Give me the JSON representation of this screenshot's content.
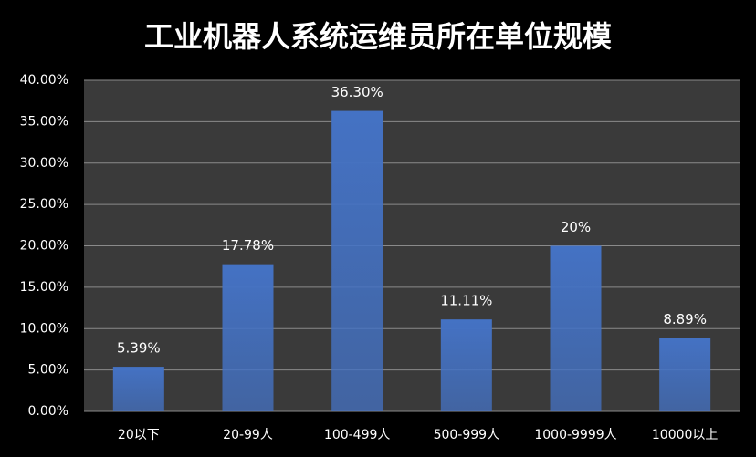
{
  "chart_data": {
    "type": "bar",
    "title": "工业机器人系统运维员所在单位规模",
    "categories": [
      "20以下",
      "20-99人",
      "100-499人",
      "500-999人",
      "1000-9999人",
      "10000以上"
    ],
    "values": [
      5.39,
      17.78,
      36.3,
      11.11,
      20,
      8.89
    ],
    "value_labels": [
      "5.39%",
      "17.78%",
      "36.30%",
      "11.11%",
      "20%",
      "8.89%"
    ],
    "color": "#4472c4",
    "ylim": [
      0,
      40
    ],
    "yticks": [
      {
        "value": 0,
        "label": "0.00%"
      },
      {
        "value": 5,
        "label": "5.00%"
      },
      {
        "value": 10,
        "label": "10.00%"
      },
      {
        "value": 15,
        "label": "15.00%"
      },
      {
        "value": 20,
        "label": "20.00%"
      },
      {
        "value": 25,
        "label": "25.00%"
      },
      {
        "value": 30,
        "label": "30.00%"
      },
      {
        "value": 35,
        "label": "35.00%"
      },
      {
        "value": 40,
        "label": "40.00%"
      }
    ],
    "grid": true
  }
}
